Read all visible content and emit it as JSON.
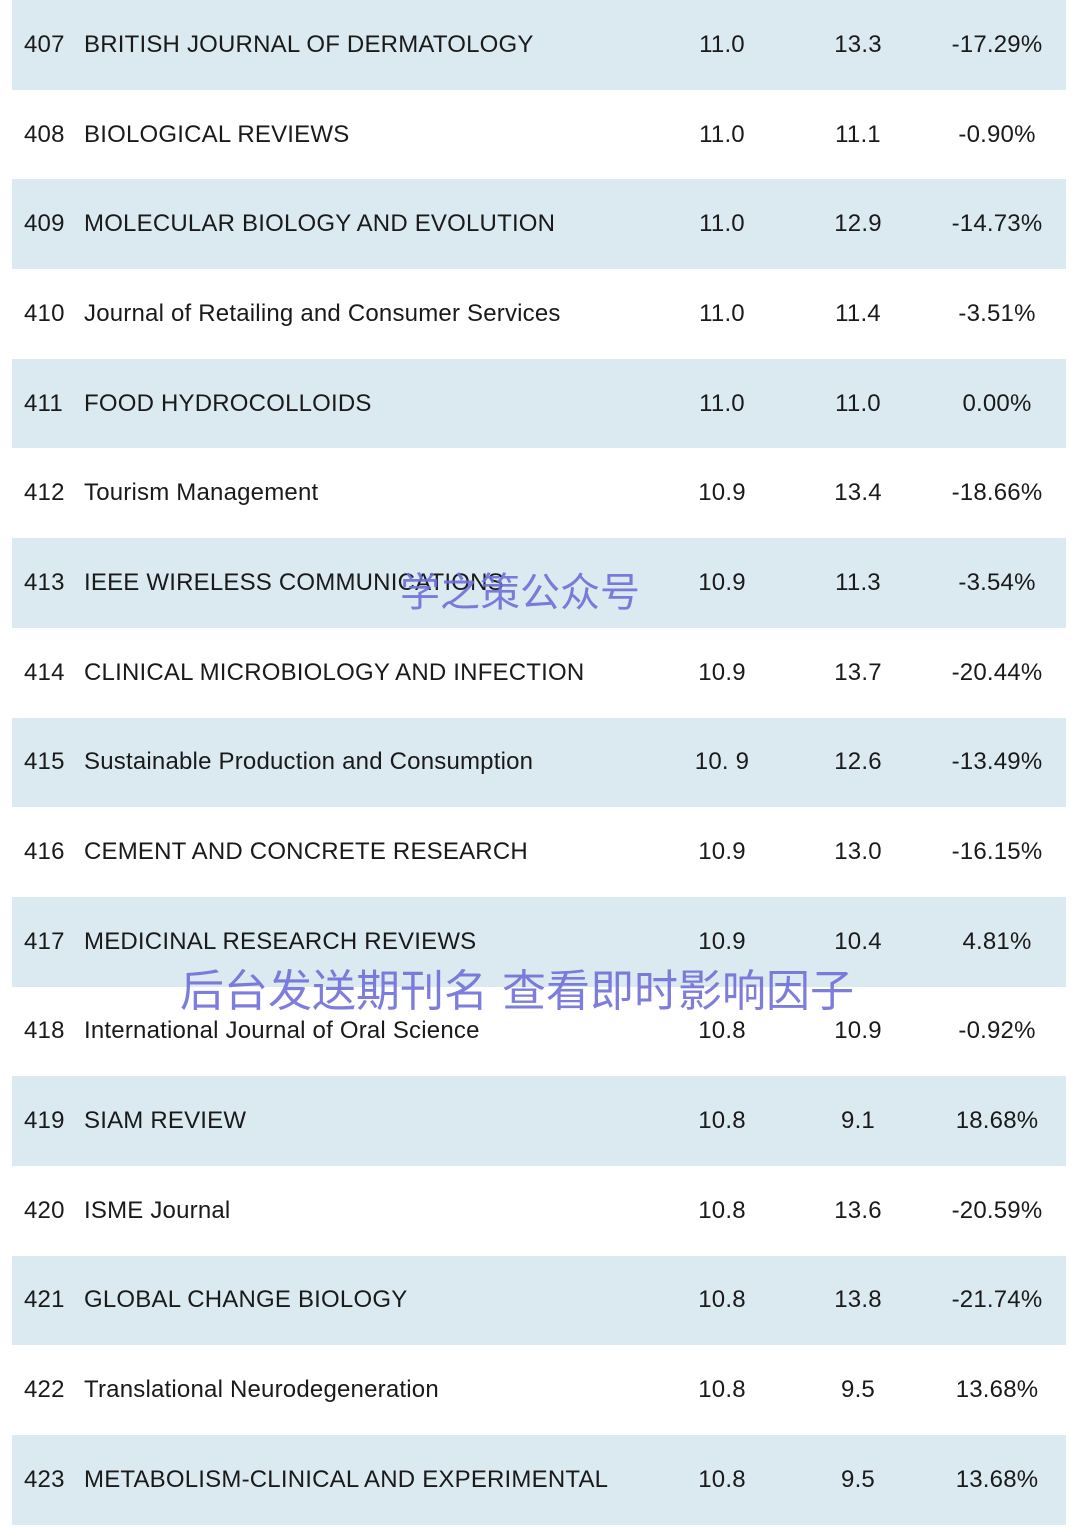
{
  "rows": [
    {
      "rank": "407",
      "name": "BRITISH JOURNAL OF DERMATOLOGY",
      "if_a": "11.0",
      "if_b": "13.3",
      "change": "-17.29%"
    },
    {
      "rank": "408",
      "name": "BIOLOGICAL REVIEWS",
      "if_a": "11.0",
      "if_b": "11.1",
      "change": "-0.90%"
    },
    {
      "rank": "409",
      "name": "MOLECULAR BIOLOGY AND EVOLUTION",
      "if_a": "11.0",
      "if_b": "12.9",
      "change": "-14.73%"
    },
    {
      "rank": "410",
      "name": "Journal of Retailing and Consumer Services",
      "if_a": "11.0",
      "if_b": "11.4",
      "change": "-3.51%"
    },
    {
      "rank": "411",
      "name": "FOOD HYDROCOLLOIDS",
      "if_a": "11.0",
      "if_b": "11.0",
      "change": "0.00%"
    },
    {
      "rank": "412",
      "name": "Tourism Management",
      "if_a": "10.9",
      "if_b": "13.4",
      "change": "-18.66%"
    },
    {
      "rank": "413",
      "name": "IEEE WIRELESS COMMUNICATIONS",
      "if_a": "10.9",
      "if_b": "11.3",
      "change": "-3.54%"
    },
    {
      "rank": "414",
      "name": "CLINICAL MICROBIOLOGY AND INFECTION",
      "if_a": "10.9",
      "if_b": "13.7",
      "change": "-20.44%"
    },
    {
      "rank": "415",
      "name": "Sustainable Production and Consumption",
      "if_a": "10. 9",
      "if_b": "12.6",
      "change": "-13.49%"
    },
    {
      "rank": "416",
      "name": "CEMENT AND CONCRETE RESEARCH",
      "if_a": "10.9",
      "if_b": "13.0",
      "change": "-16.15%"
    },
    {
      "rank": "417",
      "name": "MEDICINAL RESEARCH REVIEWS",
      "if_a": "10.9",
      "if_b": "10.4",
      "change": "4.81%"
    },
    {
      "rank": "418",
      "name": "International Journal of Oral Science",
      "if_a": "10.8",
      "if_b": "10.9",
      "change": "-0.92%"
    },
    {
      "rank": "419",
      "name": "SIAM REVIEW",
      "if_a": "10.8",
      "if_b": "9.1",
      "change": "18.68%"
    },
    {
      "rank": "420",
      "name": "ISME Journal",
      "if_a": "10.8",
      "if_b": "13.6",
      "change": "-20.59%"
    },
    {
      "rank": "421",
      "name": "GLOBAL CHANGE BIOLOGY",
      "if_a": "10.8",
      "if_b": "13.8",
      "change": "-21.74%"
    },
    {
      "rank": "422",
      "name": "Translational Neurodegeneration",
      "if_a": "10.8",
      "if_b": "9.5",
      "change": "13.68%"
    },
    {
      "rank": "423",
      "name": "METABOLISM-CLINICAL AND EXPERIMENTAL",
      "if_a": "10.8",
      "if_b": "9.5",
      "change": "13.68%"
    }
  ],
  "watermarks": {
    "account": "学之策公众号",
    "instruction": "后台发送期刊名 查看即时影响因子"
  },
  "colors": {
    "row_shaded": "#dbe9f1",
    "row_plain": "#ffffff",
    "watermark": "#6f6fd8"
  }
}
